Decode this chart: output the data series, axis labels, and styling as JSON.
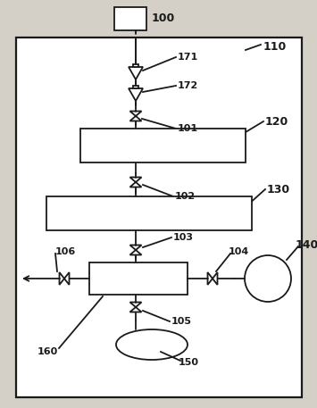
{
  "bg_color": "#d4d0c8",
  "line_color": "#1a1a1a",
  "box_face": "#ffffff",
  "label_100": "100",
  "label_110": "110",
  "label_171": "171",
  "label_172": "172",
  "label_101": "101",
  "label_102": "102",
  "label_103": "103",
  "label_104": "104",
  "label_105": "105",
  "label_106": "106",
  "label_120": "120",
  "label_130": "130",
  "label_140": "140",
  "label_150": "150",
  "label_160": "160"
}
